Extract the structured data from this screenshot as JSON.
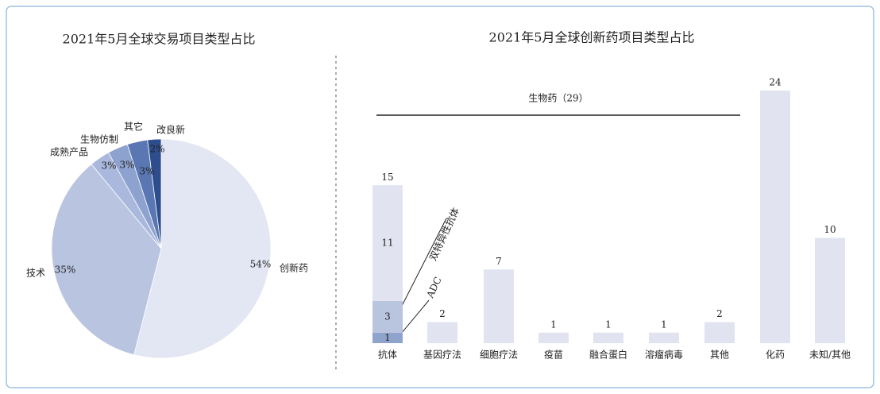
{
  "chart_data": [
    {
      "type": "pie",
      "title": "2021年5月全球交易项目类型占比",
      "categories": [
        "创新药",
        "技术",
        "成熟产品",
        "生物仿制",
        "其它",
        "改良新"
      ],
      "values": [
        54,
        35,
        3,
        3,
        3,
        2
      ],
      "value_labels": [
        "54%",
        "35%",
        "3%",
        "3%",
        "3%",
        "2%"
      ],
      "colors": [
        "#e3e7f3",
        "#b8c4e0",
        "#a9b8dc",
        "#8ea2cf",
        "#5a77b3",
        "#2d4d8c"
      ]
    },
    {
      "type": "bar",
      "title": "2021年5月全球创新药项目类型占比",
      "categories": [
        "抗体",
        "基因疗法",
        "细胞疗法",
        "疫苗",
        "融合蛋白",
        "溶瘤病毒",
        "其他",
        "化药",
        "未知/其他"
      ],
      "values": [
        15,
        2,
        7,
        1,
        1,
        1,
        2,
        24,
        10
      ],
      "color": "#e1e4f0",
      "annotation": "生物药（29）",
      "stack_segments": [
        {
          "name": "ADC",
          "value": 1,
          "color": "#8fa4cc"
        },
        {
          "name": "双特异性抗体",
          "value": 3,
          "color": "#b9c5df"
        },
        {
          "value": 11,
          "color": "#e1e4f0"
        }
      ]
    }
  ]
}
